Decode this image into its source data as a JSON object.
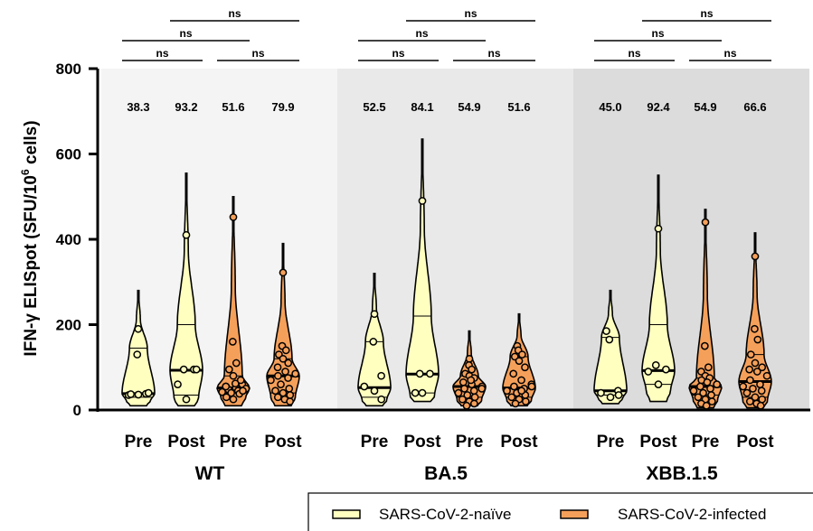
{
  "chart_data": {
    "type": "violin",
    "ylabel_prefix": "IFN-γ ELISpot (SFU/10",
    "ylabel_sup": "6",
    "ylabel_suffix": " cells)",
    "ylim": [
      0,
      800
    ],
    "yticks": [
      0,
      200,
      400,
      600,
      800
    ],
    "legend_position": "bottom-right",
    "series": [
      {
        "name": "SARS-CoV-2-naïve",
        "color": "#ffffc0"
      },
      {
        "name": "SARS-CoV-2-infected",
        "color": "#f5a05a"
      }
    ],
    "groups": [
      {
        "label": "WT",
        "background": "#f4f4f4",
        "violins": [
          {
            "category": "Pre",
            "series": 0,
            "median_label": "38.3",
            "median": 38.3,
            "q1": 30,
            "q3": 145,
            "max": 280,
            "min": 10,
            "points": [
              190,
              130,
              38,
              35,
              36,
              40,
              37
            ]
          },
          {
            "category": "Post",
            "series": 0,
            "median_label": "93.2",
            "median": 93.2,
            "q1": 35,
            "q3": 200,
            "max": 555,
            "min": 10,
            "points": [
              410,
              95,
              95,
              60,
              25,
              95
            ]
          },
          {
            "category": "Pre",
            "series": 1,
            "median_label": "51.6",
            "median": 51.6,
            "q1": 40,
            "q3": 80,
            "max": 500,
            "min": 10,
            "points": [
              452,
              160,
              110,
              95,
              80,
              60,
              55,
              52,
              50,
              48,
              45,
              42,
              40,
              38,
              30,
              25,
              45,
              55,
              62,
              70
            ]
          },
          {
            "category": "Post",
            "series": 1,
            "median_label": "79.9",
            "median": 79.9,
            "q1": 40,
            "q3": 120,
            "max": 390,
            "min": 10,
            "points": [
              322,
              150,
              140,
              130,
              120,
              110,
              100,
              90,
              85,
              80,
              75,
              70,
              60,
              50,
              45,
              40,
              35,
              30,
              25,
              20
            ]
          }
        ],
        "comparisons": [
          {
            "from": 0,
            "to": 1,
            "label": "ns",
            "level": 0
          },
          {
            "from": 2,
            "to": 3,
            "label": "ns",
            "level": 0
          },
          {
            "from": 0,
            "to": 2,
            "label": "ns",
            "level": 1
          },
          {
            "from": 1,
            "to": 3,
            "label": "ns",
            "level": 2
          }
        ]
      },
      {
        "label": "BA.5",
        "background": "#e9e9e9",
        "violins": [
          {
            "category": "Pre",
            "series": 0,
            "median_label": "52.5",
            "median": 52.5,
            "q1": 30,
            "q3": 160,
            "max": 320,
            "min": 10,
            "points": [
              225,
              160,
              80,
              55,
              45,
              25
            ]
          },
          {
            "category": "Post",
            "series": 0,
            "median_label": "84.1",
            "median": 84.1,
            "q1": 40,
            "q3": 220,
            "max": 635,
            "min": 20,
            "points": [
              490,
              85,
              85,
              40,
              40
            ]
          },
          {
            "category": "Pre",
            "series": 1,
            "median_label": "54.9",
            "median": 54.9,
            "q1": 30,
            "q3": 80,
            "max": 185,
            "min": 10,
            "points": [
              120,
              105,
              95,
              85,
              80,
              75,
              65,
              60,
              55,
              50,
              45,
              40,
              35,
              30,
              25,
              20,
              15,
              10,
              70,
              50
            ]
          },
          {
            "category": "Post",
            "series": 1,
            "median_label": "51.6",
            "median": 51.6,
            "q1": 30,
            "q3": 125,
            "max": 225,
            "min": 10,
            "points": [
              150,
              140,
              130,
              125,
              115,
              100,
              85,
              70,
              60,
              55,
              50,
              45,
              40,
              35,
              30,
              25,
              20,
              15,
              45,
              55
            ]
          }
        ],
        "comparisons": [
          {
            "from": 0,
            "to": 1,
            "label": "ns",
            "level": 0
          },
          {
            "from": 2,
            "to": 3,
            "label": "ns",
            "level": 0
          },
          {
            "from": 0,
            "to": 2,
            "label": "ns",
            "level": 1
          },
          {
            "from": 1,
            "to": 3,
            "label": "ns",
            "level": 2
          }
        ]
      },
      {
        "label": "XBB.1.5",
        "background": "#dcdcdc",
        "violins": [
          {
            "category": "Pre",
            "series": 0,
            "median_label": "45.0",
            "median": 45.0,
            "q1": 35,
            "q3": 170,
            "max": 280,
            "min": 15,
            "points": [
              185,
              165,
              45,
              40,
              30,
              35
            ]
          },
          {
            "category": "Post",
            "series": 0,
            "median_label": "92.4",
            "median": 92.4,
            "q1": 60,
            "q3": 200,
            "max": 550,
            "min": 20,
            "points": [
              425,
              105,
              95,
              90,
              60
            ]
          },
          {
            "category": "Pre",
            "series": 1,
            "median_label": "54.9",
            "median": 54.9,
            "q1": 35,
            "q3": 75,
            "max": 470,
            "min": 5,
            "points": [
              440,
              150,
              100,
              90,
              80,
              75,
              70,
              65,
              60,
              55,
              50,
              45,
              40,
              35,
              30,
              25,
              20,
              15,
              10,
              60
            ]
          },
          {
            "category": "Post",
            "series": 1,
            "median_label": "66.6",
            "median": 66.6,
            "q1": 30,
            "q3": 130,
            "max": 415,
            "min": 5,
            "points": [
              360,
              190,
              165,
              130,
              110,
              100,
              95,
              90,
              80,
              70,
              60,
              55,
              50,
              45,
              40,
              30,
              25,
              20,
              15,
              10
            ]
          }
        ],
        "comparisons": [
          {
            "from": 0,
            "to": 1,
            "label": "ns",
            "level": 0
          },
          {
            "from": 2,
            "to": 3,
            "label": "ns",
            "level": 0
          },
          {
            "from": 0,
            "to": 2,
            "label": "ns",
            "level": 1
          },
          {
            "from": 1,
            "to": 3,
            "label": "ns",
            "level": 2
          }
        ]
      }
    ]
  }
}
